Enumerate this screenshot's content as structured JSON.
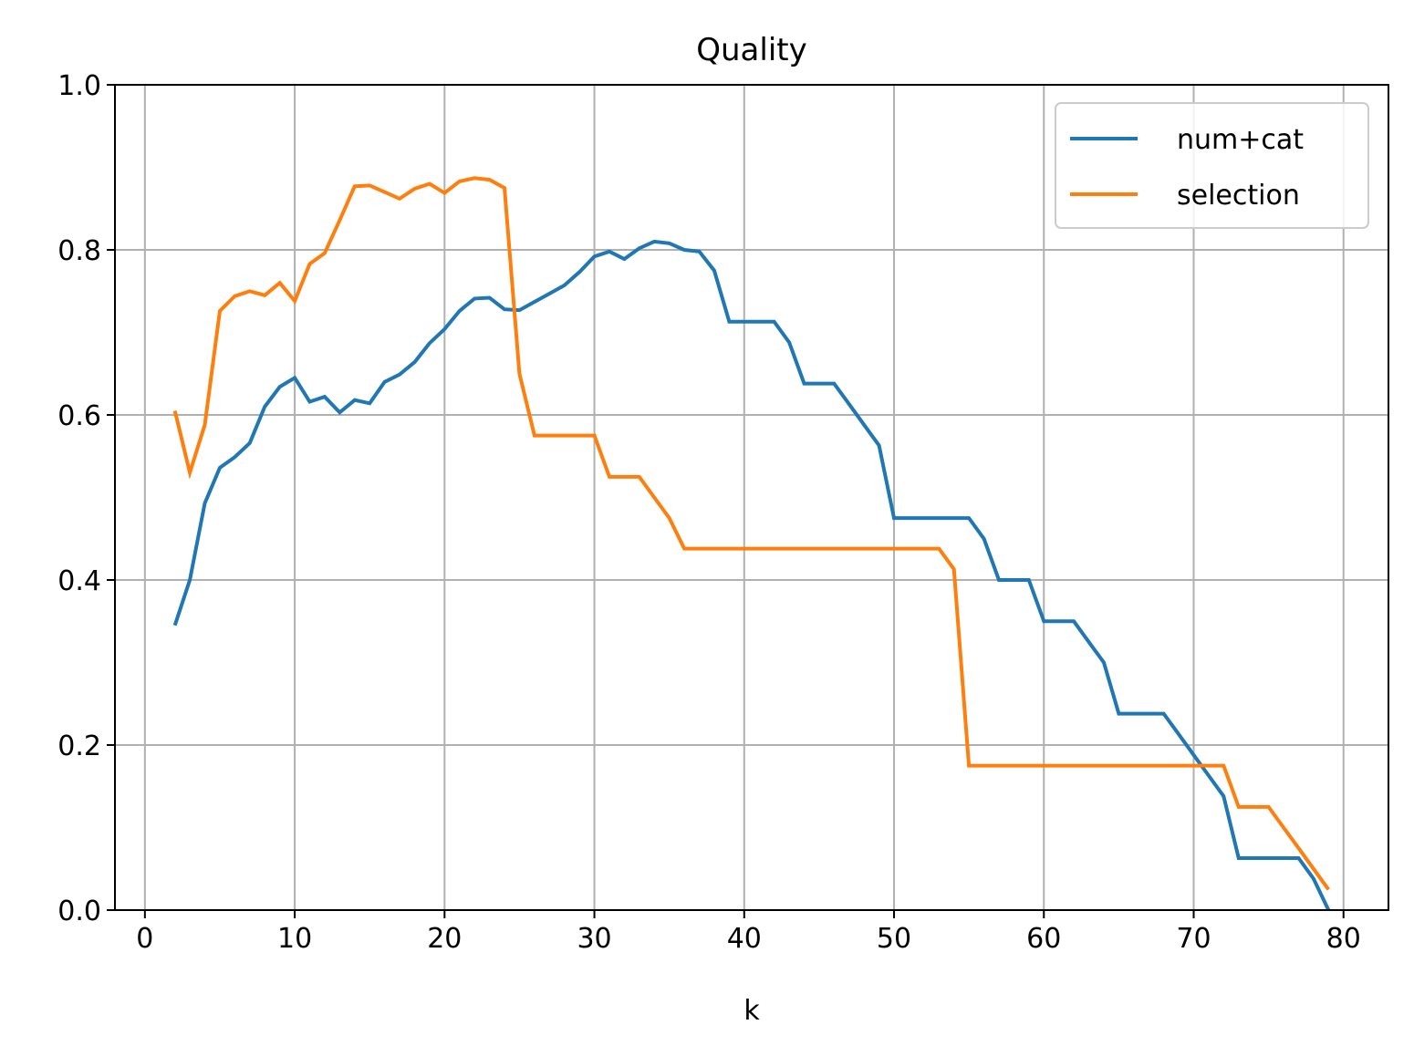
{
  "chart_data": {
    "type": "line",
    "title": "Quality",
    "xlabel": "k",
    "ylabel": "",
    "xlim": [
      -2,
      83
    ],
    "ylim": [
      0,
      1.0
    ],
    "xticks": [
      0,
      10,
      20,
      30,
      40,
      50,
      60,
      70,
      80
    ],
    "yticks": [
      0.0,
      0.2,
      0.4,
      0.6,
      0.8,
      1.0
    ],
    "xtick_labels": [
      "0",
      "10",
      "20",
      "30",
      "40",
      "50",
      "60",
      "70",
      "80"
    ],
    "ytick_labels": [
      "0.0",
      "0.2",
      "0.4",
      "0.6",
      "0.8",
      "1.0"
    ],
    "grid": true,
    "legend_position": "top-right",
    "series": [
      {
        "name": "num+cat",
        "color": "#1f77b4",
        "x": [
          2,
          3,
          4,
          5,
          6,
          7,
          8,
          9,
          10,
          11,
          12,
          13,
          14,
          15,
          16,
          17,
          18,
          19,
          20,
          21,
          22,
          23,
          24,
          25,
          26,
          27,
          28,
          29,
          30,
          31,
          32,
          33,
          34,
          35,
          36,
          37,
          38,
          39,
          40,
          41,
          42,
          43,
          44,
          45,
          46,
          47,
          48,
          49,
          50,
          51,
          52,
          53,
          54,
          55,
          56,
          57,
          58,
          59,
          60,
          61,
          62,
          63,
          64,
          65,
          66,
          67,
          68,
          69,
          70,
          71,
          72,
          73,
          74,
          75,
          76,
          77,
          78,
          79
        ],
        "y": [
          0.345,
          0.4,
          0.493,
          0.536,
          0.549,
          0.566,
          0.61,
          0.634,
          0.645,
          0.616,
          0.622,
          0.603,
          0.618,
          0.614,
          0.64,
          0.649,
          0.664,
          0.687,
          0.704,
          0.726,
          0.741,
          0.742,
          0.728,
          0.727,
          0.737,
          0.747,
          0.757,
          0.773,
          0.792,
          0.798,
          0.789,
          0.802,
          0.81,
          0.808,
          0.8,
          0.798,
          0.775,
          0.713,
          0.713,
          0.713,
          0.713,
          0.688,
          0.638,
          0.638,
          0.638,
          0.613,
          0.588,
          0.563,
          0.475,
          0.475,
          0.475,
          0.475,
          0.475,
          0.475,
          0.45,
          0.4,
          0.4,
          0.4,
          0.35,
          0.35,
          0.35,
          0.325,
          0.3,
          0.238,
          0.238,
          0.238,
          0.238,
          0.213,
          0.188,
          0.163,
          0.138,
          0.063,
          0.063,
          0.063,
          0.063,
          0.063,
          0.038,
          0.0
        ]
      },
      {
        "name": "selection",
        "color": "#ff7f0e",
        "x": [
          2,
          3,
          4,
          5,
          6,
          7,
          8,
          9,
          10,
          11,
          12,
          13,
          14,
          15,
          16,
          17,
          18,
          19,
          20,
          21,
          22,
          23,
          24,
          25,
          26,
          27,
          28,
          29,
          30,
          31,
          32,
          33,
          34,
          35,
          36,
          37,
          38,
          39,
          40,
          41,
          42,
          43,
          44,
          45,
          46,
          47,
          48,
          49,
          50,
          51,
          52,
          53,
          54,
          55,
          56,
          57,
          58,
          59,
          60,
          61,
          62,
          63,
          64,
          65,
          66,
          67,
          68,
          69,
          70,
          71,
          72,
          73,
          74,
          75,
          76,
          77,
          78,
          79
        ],
        "y": [
          0.605,
          0.53,
          0.588,
          0.726,
          0.744,
          0.75,
          0.745,
          0.76,
          0.738,
          0.783,
          0.796,
          0.836,
          0.877,
          0.878,
          0.87,
          0.862,
          0.874,
          0.88,
          0.869,
          0.883,
          0.887,
          0.885,
          0.875,
          0.65,
          0.575,
          0.575,
          0.575,
          0.575,
          0.575,
          0.525,
          0.525,
          0.525,
          0.5,
          0.475,
          0.438,
          0.438,
          0.438,
          0.438,
          0.438,
          0.438,
          0.438,
          0.438,
          0.438,
          0.438,
          0.438,
          0.438,
          0.438,
          0.438,
          0.438,
          0.438,
          0.438,
          0.438,
          0.413,
          0.175,
          0.175,
          0.175,
          0.175,
          0.175,
          0.175,
          0.175,
          0.175,
          0.175,
          0.175,
          0.175,
          0.175,
          0.175,
          0.175,
          0.175,
          0.175,
          0.175,
          0.175,
          0.125,
          0.125,
          0.125,
          0.1,
          0.075,
          0.05,
          0.025
        ]
      }
    ]
  }
}
